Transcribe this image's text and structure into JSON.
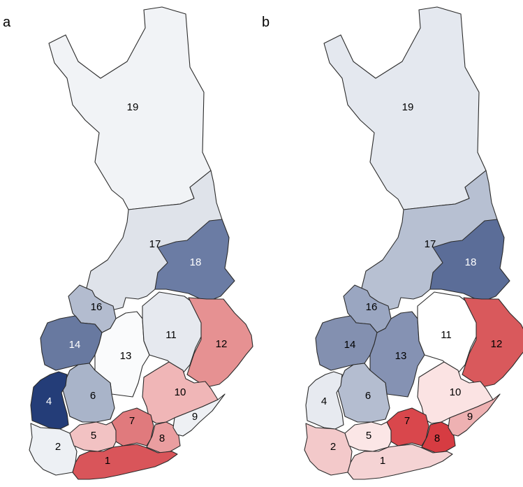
{
  "panels": [
    {
      "letter": "a",
      "regions": [
        {
          "id": "1",
          "color": "#d9555a",
          "label_color": "#000000"
        },
        {
          "id": "2",
          "color": "#edf0f4",
          "label_color": "#000000"
        },
        {
          "id": "4",
          "color": "#243d78",
          "label_color": "#ffffff"
        },
        {
          "id": "5",
          "color": "#f2c2c3",
          "label_color": "#000000"
        },
        {
          "id": "6",
          "color": "#a9b4c9",
          "label_color": "#000000"
        },
        {
          "id": "7",
          "color": "#e07a7d",
          "label_color": "#000000"
        },
        {
          "id": "8",
          "color": "#ea9ea0",
          "label_color": "#000000"
        },
        {
          "id": "9",
          "color": "#eef0f4",
          "label_color": "#000000"
        },
        {
          "id": "10",
          "color": "#f0b6b7",
          "label_color": "#000000"
        },
        {
          "id": "11",
          "color": "#e6e9ef",
          "label_color": "#000000"
        },
        {
          "id": "12",
          "color": "#e69192",
          "label_color": "#000000"
        },
        {
          "id": "13",
          "color": "#fafbfc",
          "label_color": "#000000"
        },
        {
          "id": "14",
          "color": "#6879a0",
          "label_color": "#ffffff"
        },
        {
          "id": "16",
          "color": "#b3bccf",
          "label_color": "#000000"
        },
        {
          "id": "17",
          "color": "#dfe3ea",
          "label_color": "#000000"
        },
        {
          "id": "18",
          "color": "#6b7ca4",
          "label_color": "#ffffff"
        },
        {
          "id": "19",
          "color": "#f1f3f6",
          "label_color": "#000000"
        }
      ]
    },
    {
      "letter": "b",
      "regions": [
        {
          "id": "1",
          "color": "#f5d3d4",
          "label_color": "#000000"
        },
        {
          "id": "2",
          "color": "#f3c9ca",
          "label_color": "#000000"
        },
        {
          "id": "4",
          "color": "#e7eaf0",
          "label_color": "#000000"
        },
        {
          "id": "5",
          "color": "#fbe6e6",
          "label_color": "#000000"
        },
        {
          "id": "6",
          "color": "#b4bdd0",
          "label_color": "#000000"
        },
        {
          "id": "7",
          "color": "#d9474c",
          "label_color": "#000000"
        },
        {
          "id": "8",
          "color": "#d63c42",
          "label_color": "#000000"
        },
        {
          "id": "9",
          "color": "#eeb1b2",
          "label_color": "#000000"
        },
        {
          "id": "10",
          "color": "#fbe3e3",
          "label_color": "#000000"
        },
        {
          "id": "11",
          "color": "#ffffff",
          "label_color": "#000000"
        },
        {
          "id": "12",
          "color": "#d9595c",
          "label_color": "#000000"
        },
        {
          "id": "13",
          "color": "#8592b3",
          "label_color": "#000000"
        },
        {
          "id": "14",
          "color": "#8390b0",
          "label_color": "#000000"
        },
        {
          "id": "16",
          "color": "#9aa6c1",
          "label_color": "#000000"
        },
        {
          "id": "17",
          "color": "#b7c0d2",
          "label_color": "#000000"
        },
        {
          "id": "18",
          "color": "#5b6d98",
          "label_color": "#ffffff"
        },
        {
          "id": "19",
          "color": "#e4e8ef",
          "label_color": "#000000"
        }
      ]
    }
  ]
}
